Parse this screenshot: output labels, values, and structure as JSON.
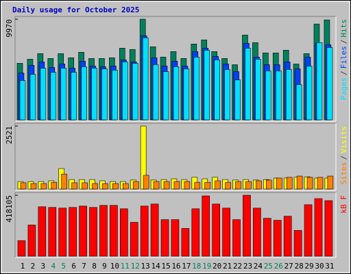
{
  "chart_data": [
    {
      "type": "bar",
      "title": "Daily usage for October 2025",
      "ylim": [
        0,
        9970
      ],
      "yticks": [
        9970
      ],
      "legend_separator": "/",
      "series": [
        {
          "name": "Hits",
          "color": "#00805c",
          "values": [
            5600,
            6010,
            6560,
            6080,
            6560,
            6150,
            6690,
            6080,
            6080,
            6150,
            7100,
            6970,
            9970,
            7240,
            6220,
            6760,
            6080,
            7510,
            7920,
            6760,
            6080,
            5460,
            8400,
            7650,
            6630,
            6630,
            6900,
            5530,
            6560,
            9490,
            9900
          ]
        },
        {
          "name": "Files",
          "color": "#0040ff",
          "values": [
            4640,
            5400,
            5740,
            5190,
            5530,
            5120,
            5810,
            5330,
            5260,
            5330,
            5940,
            5740,
            8330,
            6150,
            5330,
            5810,
            5330,
            6760,
            7100,
            6280,
            5530,
            4780,
            7580,
            6220,
            5460,
            5460,
            5740,
            5050,
            6220,
            7580,
            7440
          ]
        },
        {
          "name": "Pages",
          "color": "#00e0ff",
          "values": [
            3890,
            4510,
            5120,
            4710,
            5120,
            4710,
            5260,
            5120,
            5050,
            4920,
            5740,
            5600,
            8130,
            5460,
            4780,
            5260,
            5050,
            6220,
            6900,
            5940,
            4990,
            3960,
            7100,
            6010,
            4850,
            4850,
            4990,
            3480,
            5330,
            7650,
            7170
          ]
        }
      ]
    },
    {
      "type": "bar",
      "ylim": [
        0,
        2521
      ],
      "yticks": [
        2521
      ],
      "legend_separator": "/",
      "series": [
        {
          "name": "Visits",
          "color": "#ffff00",
          "values": [
            300,
            300,
            300,
            330,
            820,
            380,
            380,
            380,
            330,
            300,
            300,
            360,
            2521,
            360,
            380,
            410,
            380,
            470,
            410,
            470,
            380,
            360,
            380,
            360,
            380,
            440,
            440,
            470,
            490,
            440,
            440
          ]
        },
        {
          "name": "Sites",
          "color": "#ff8000",
          "values": [
            250,
            220,
            220,
            270,
            600,
            250,
            250,
            220,
            220,
            220,
            220,
            300,
            550,
            300,
            300,
            300,
            300,
            270,
            270,
            330,
            270,
            300,
            300,
            330,
            360,
            440,
            470,
            520,
            470,
            470,
            520
          ]
        }
      ]
    },
    {
      "type": "bar",
      "ylim": [
        0,
        418105
      ],
      "yticks": [
        418105
      ],
      "categories": [
        "1",
        "2",
        "3",
        "4",
        "5",
        "6",
        "7",
        "8",
        "9",
        "10",
        "11",
        "12",
        "13",
        "14",
        "15",
        "16",
        "17",
        "18",
        "19",
        "20",
        "21",
        "22",
        "23",
        "24",
        "25",
        "26",
        "27",
        "28",
        "29",
        "30",
        "31"
      ],
      "category_colors": [
        "#000000",
        "#000000",
        "#000000",
        "#00805c",
        "#00805c",
        "#000000",
        "#000000",
        "#000000",
        "#000000",
        "#000000",
        "#00805c",
        "#00805c",
        "#000000",
        "#000000",
        "#000000",
        "#000000",
        "#000000",
        "#00805c",
        "#00805c",
        "#000000",
        "#000000",
        "#000000",
        "#000000",
        "#000000",
        "#00805c",
        "#00805c",
        "#000000",
        "#000000",
        "#000000",
        "#000000",
        "#000000"
      ],
      "series": [
        {
          "name": "kB F",
          "color": "#ff0000",
          "values": [
            107000,
            213700,
            339000,
            334400,
            329800,
            334400,
            343700,
            334400,
            348400,
            348400,
            325200,
            232300,
            343700,
            357700,
            250800,
            250800,
            190400,
            325200,
            413400,
            357700,
            329800,
            250800,
            418105,
            329800,
            260100,
            246200,
            274100,
            176500,
            353000,
            394800,
            380900
          ]
        }
      ]
    }
  ]
}
